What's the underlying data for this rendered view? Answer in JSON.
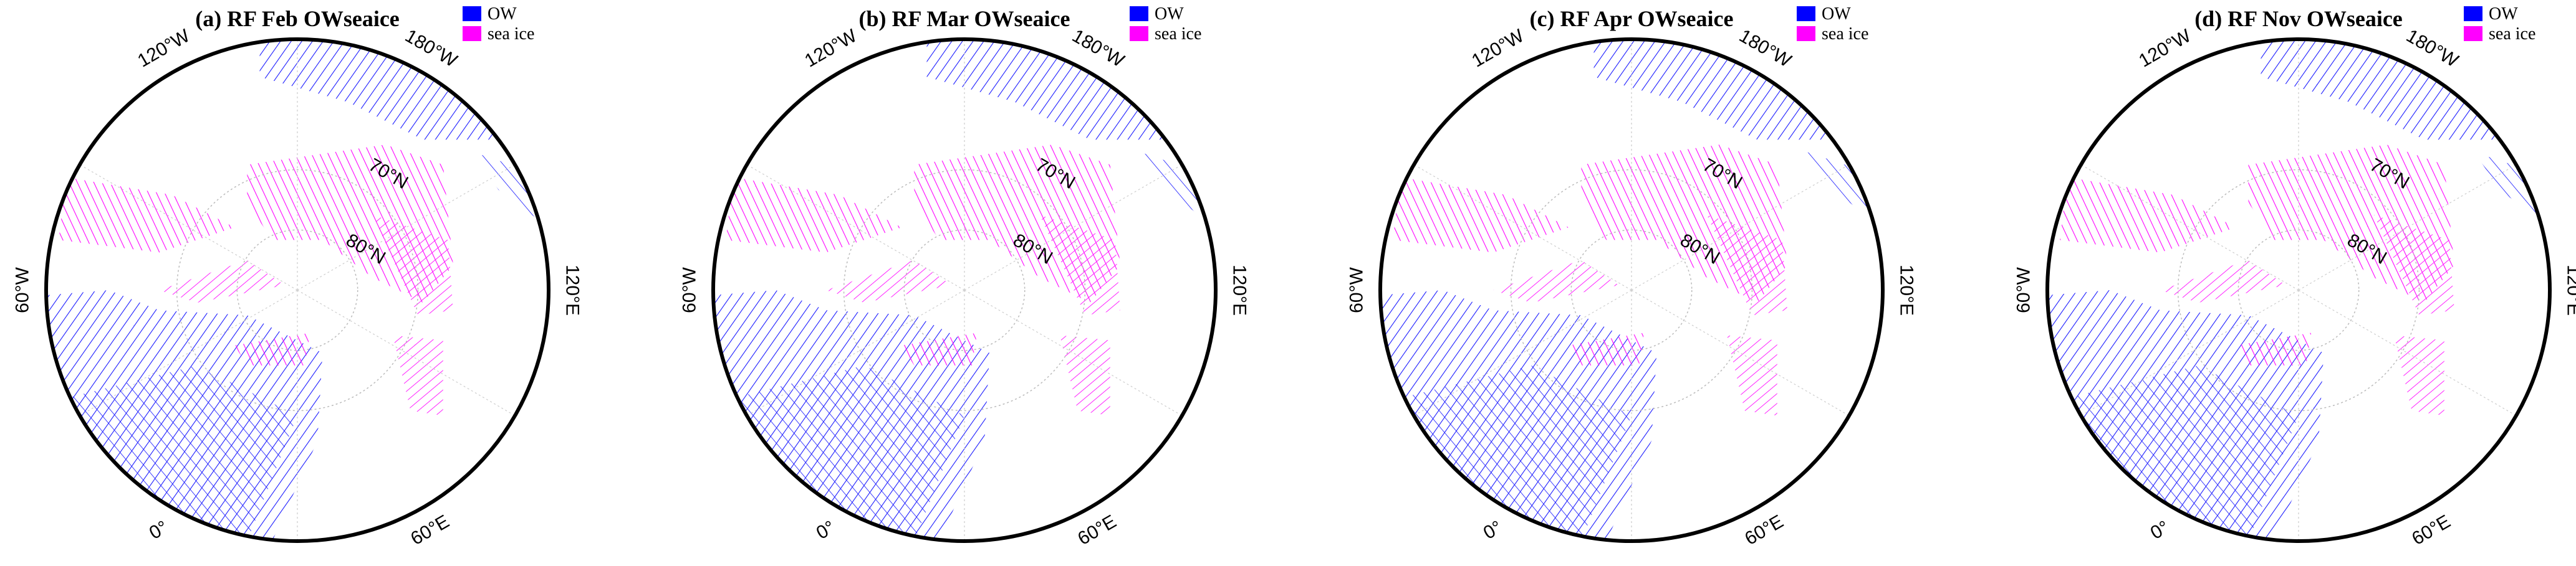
{
  "panels": [
    {
      "title": "(a) RF Feb OWseaice"
    },
    {
      "title": "(b) RF Mar OWseaice"
    },
    {
      "title": "(c) RF Apr OWseaice"
    },
    {
      "title": "(d) RF Nov OWseaice"
    }
  ],
  "legend": [
    "OW",
    "sea ice"
  ],
  "longitude_labels": [
    "120°W",
    "180°W",
    "60°W",
    "120°E",
    "0°",
    "60°E"
  ],
  "latitude_labels": [
    "70°N",
    "80°N"
  ]
}
